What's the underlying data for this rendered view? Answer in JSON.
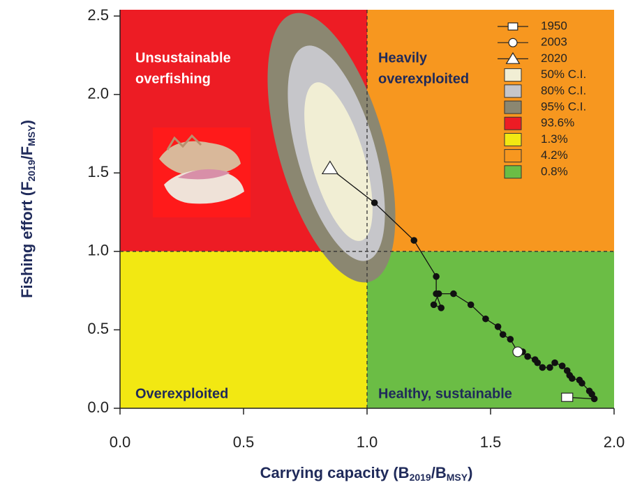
{
  "chart_data": {
    "type": "kobe",
    "xlim": [
      0,
      2.0
    ],
    "ylim": [
      0,
      2.54
    ],
    "xticks": [
      {
        "value": 0,
        "label": "0.0"
      },
      {
        "value": 0.5,
        "label": "0.5"
      },
      {
        "value": 1,
        "label": "1.0"
      },
      {
        "value": 1.5,
        "label": "1.5"
      },
      {
        "value": 2,
        "label": "2.0"
      }
    ],
    "yticks": [
      {
        "value": 0,
        "label": "0.0"
      },
      {
        "value": 0.5,
        "label": "0.5"
      },
      {
        "value": 1,
        "label": "1.0"
      },
      {
        "value": 1.5,
        "label": "1.5"
      },
      {
        "value": 2,
        "label": "2.0"
      },
      {
        "value": 2.5,
        "label": "2.5"
      }
    ],
    "x_label": [
      "Carrying capacity (B",
      "2019",
      "/B",
      "MSY",
      ")"
    ],
    "y_label": [
      "Fishing effort (F",
      "2019",
      "/F",
      "MSY",
      ")"
    ],
    "quadrants": [
      {
        "name": "93.6%",
        "color": "#ed1c24",
        "position": "top-left",
        "label": [
          "Unsustainable",
          "overfishing"
        ],
        "label_color": "#ffffff"
      },
      {
        "name": "1.3%",
        "color": "#f2e812",
        "position": "bottom-left",
        "label": [
          "Overexploited"
        ],
        "label_color": "#1f2a5a"
      },
      {
        "name": "4.2%",
        "color": "#f7971f",
        "position": "top-right",
        "label": [
          "Heavily",
          "overexploited"
        ],
        "label_color": "#1f2a5a"
      },
      {
        "name": "0.8%",
        "color": "#6bbd45",
        "position": "bottom-right",
        "label": [
          "Healthy, sustainable"
        ],
        "label_color": "#1f2a5a"
      }
    ],
    "confidence_regions": [
      {
        "name": "50% C.I.",
        "color": "#f1eed4"
      },
      {
        "name": "80% C.I.",
        "color": "#c6c6ca"
      },
      {
        "name": "95% C.I.",
        "color": "#8b8771"
      }
    ],
    "trajectory": {
      "color": "#111111",
      "x": [
        1.81,
        1.92,
        1.91,
        1.9,
        1.87,
        1.86,
        1.83,
        1.82,
        1.81,
        1.79,
        1.76,
        1.74,
        1.71,
        1.69,
        1.68,
        1.65,
        1.63,
        1.61,
        1.58,
        1.55,
        1.53,
        1.48,
        1.42,
        1.35,
        1.29,
        1.27,
        1.3,
        1.28,
        1.28,
        1.19,
        1.03,
        0.85
      ],
      "y": [
        0.07,
        0.06,
        0.09,
        0.11,
        0.16,
        0.18,
        0.19,
        0.21,
        0.24,
        0.27,
        0.29,
        0.26,
        0.26,
        0.29,
        0.31,
        0.33,
        0.36,
        0.36,
        0.44,
        0.47,
        0.52,
        0.57,
        0.66,
        0.73,
        0.73,
        0.66,
        0.64,
        0.73,
        0.84,
        1.07,
        1.31,
        1.53
      ]
    },
    "markers": [
      {
        "name": "1950",
        "shape": "square",
        "x": 1.81,
        "y": 0.07
      },
      {
        "name": "2003",
        "shape": "circle",
        "x": 1.61,
        "y": 0.36
      },
      {
        "name": "2020",
        "shape": "triangle",
        "x": 0.85,
        "y": 1.53
      }
    ]
  }
}
